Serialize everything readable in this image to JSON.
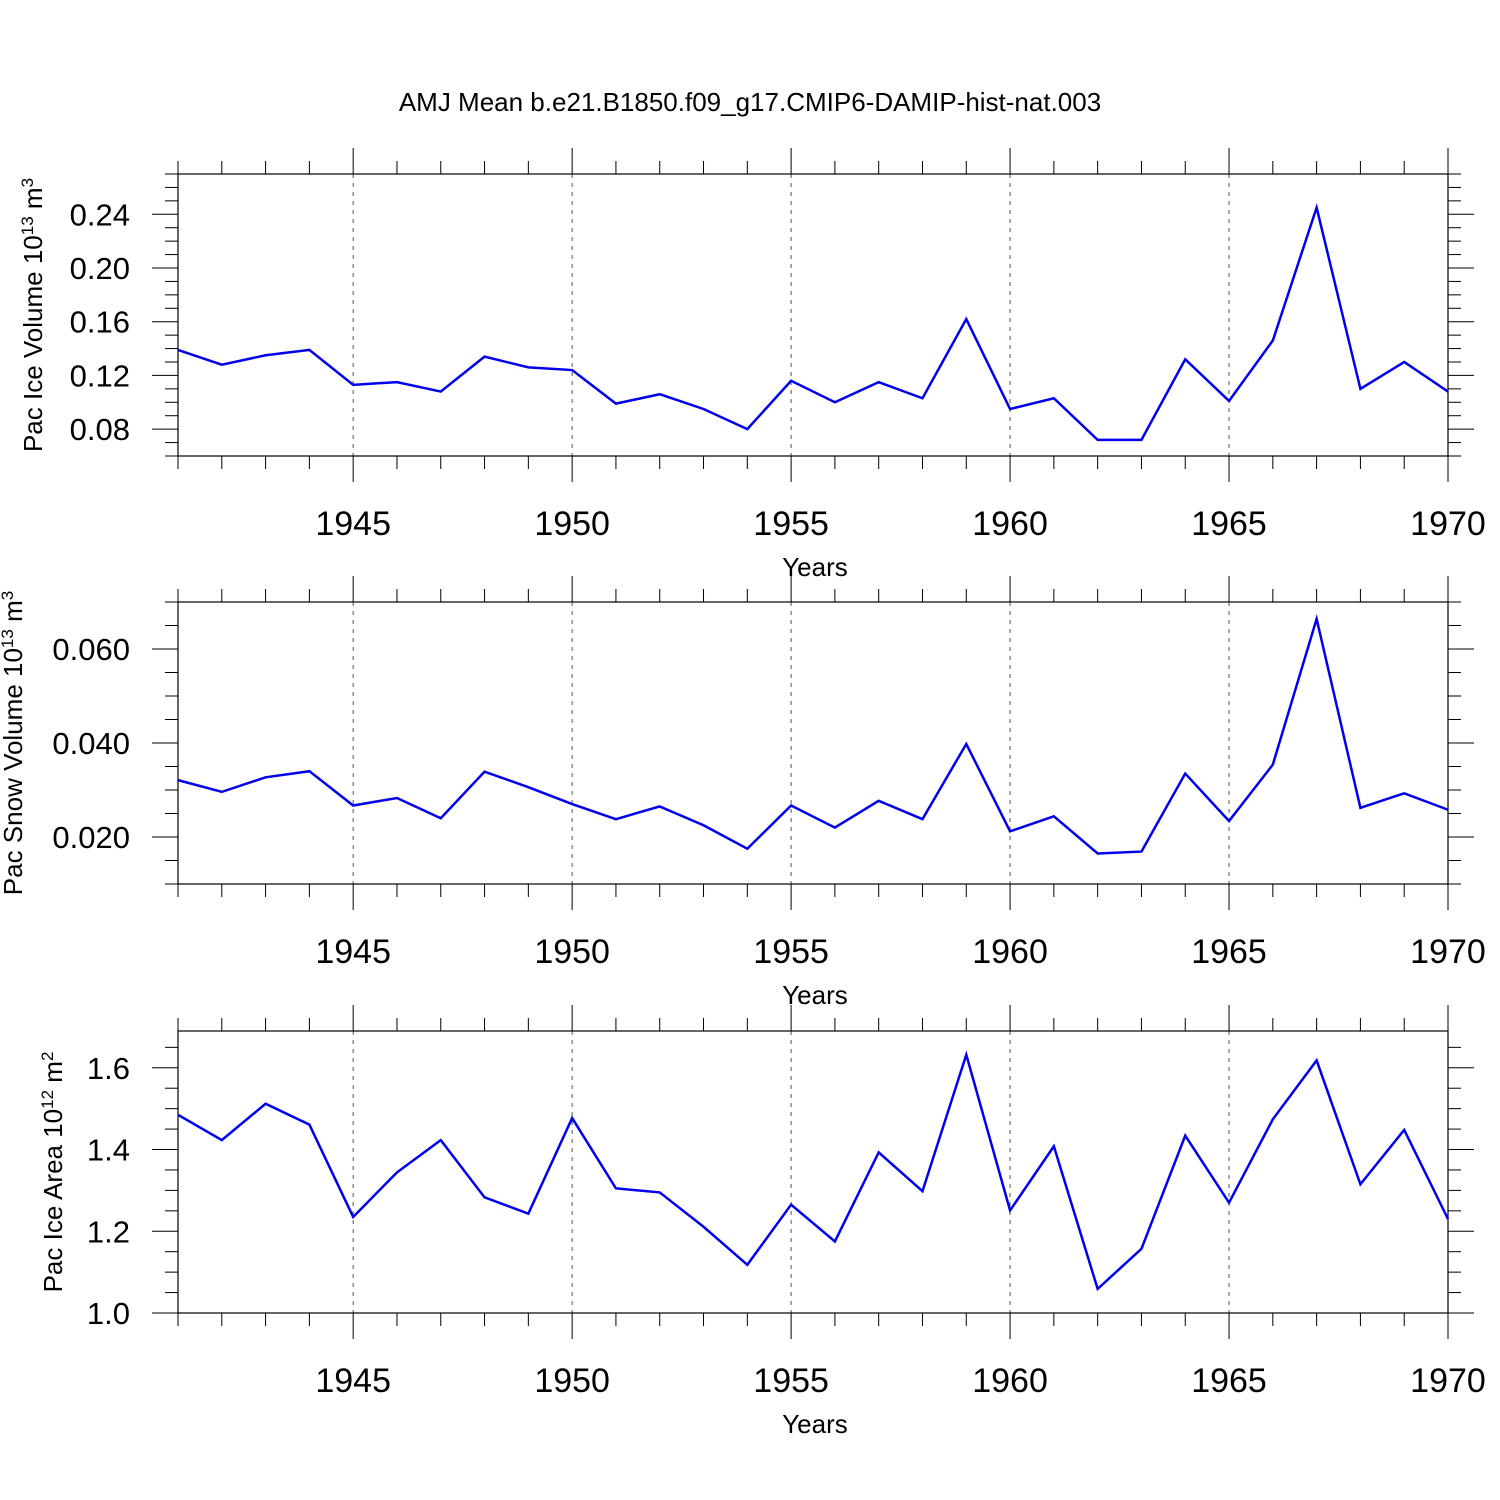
{
  "figure": {
    "title": "AMJ Mean b.e21.B1850.f09_g17.CMIP6-DAMIP-hist-nat.003"
  },
  "chart_data": [
    {
      "type": "line",
      "xlabel": "Years",
      "ylabel_text": "Pac Ice Volume 10",
      "ylabel_exp": "13",
      "ylabel_unit": " m",
      "ylabel_unit_exp": "3",
      "xlim": [
        1941,
        1970
      ],
      "ylim": [
        0.06,
        0.27
      ],
      "x_ticks": [
        "1945",
        "1950",
        "1955",
        "1960",
        "1965",
        "1970"
      ],
      "y_ticks": [
        "0.08",
        "0.12",
        "0.16",
        "0.20",
        "0.24"
      ],
      "grid": "dashed vertical lines at major x ticks",
      "color": "#0000ee",
      "x": [
        1941,
        1942,
        1943,
        1944,
        1945,
        1946,
        1947,
        1948,
        1949,
        1950,
        1951,
        1952,
        1953,
        1954,
        1955,
        1956,
        1957,
        1958,
        1959,
        1960,
        1961,
        1962,
        1963,
        1964,
        1965,
        1966,
        1967,
        1968,
        1969,
        1970
      ],
      "values": [
        0.139,
        0.128,
        0.135,
        0.139,
        0.113,
        0.115,
        0.108,
        0.134,
        0.126,
        0.124,
        0.099,
        0.106,
        0.095,
        0.08,
        0.116,
        0.1,
        0.115,
        0.103,
        0.162,
        0.095,
        0.103,
        0.072,
        0.072,
        0.132,
        0.101,
        0.146,
        0.245,
        0.11,
        0.13,
        0.108
      ]
    },
    {
      "type": "line",
      "xlabel": "Years",
      "ylabel_text": "Pac Snow Volume 10",
      "ylabel_exp": "13",
      "ylabel_unit": " m",
      "ylabel_unit_exp": "3",
      "xlim": [
        1941,
        1970
      ],
      "ylim": [
        0.01,
        0.07
      ],
      "x_ticks": [
        "1945",
        "1950",
        "1955",
        "1960",
        "1965",
        "1970"
      ],
      "y_ticks": [
        "0.020",
        "0.040",
        "0.060"
      ],
      "grid": "dashed vertical lines at major x ticks",
      "color": "#0000ee",
      "x": [
        1941,
        1942,
        1943,
        1944,
        1945,
        1946,
        1947,
        1948,
        1949,
        1950,
        1951,
        1952,
        1953,
        1954,
        1955,
        1956,
        1957,
        1958,
        1959,
        1960,
        1961,
        1962,
        1963,
        1964,
        1965,
        1966,
        1967,
        1968,
        1969,
        1970
      ],
      "values": [
        0.0321,
        0.0296,
        0.0327,
        0.034,
        0.0267,
        0.0283,
        0.024,
        0.0339,
        0.0306,
        0.027,
        0.0238,
        0.0265,
        0.0225,
        0.0175,
        0.0267,
        0.022,
        0.0277,
        0.0238,
        0.0398,
        0.0212,
        0.0244,
        0.0165,
        0.0169,
        0.0335,
        0.0234,
        0.0354,
        0.0664,
        0.0262,
        0.0293,
        0.0258
      ]
    },
    {
      "type": "line",
      "xlabel": "Years",
      "ylabel_text": "Pac Ice Area 10",
      "ylabel_exp": "12",
      "ylabel_unit": " m",
      "ylabel_unit_exp": "2",
      "xlim": [
        1941,
        1970
      ],
      "ylim": [
        1.0,
        1.69
      ],
      "x_ticks": [
        "1945",
        "1950",
        "1955",
        "1960",
        "1965",
        "1970"
      ],
      "y_ticks": [
        "1.0",
        "1.2",
        "1.4",
        "1.6"
      ],
      "grid": "dashed vertical lines at major x ticks",
      "color": "#0000ee",
      "x": [
        1941,
        1942,
        1943,
        1944,
        1945,
        1946,
        1947,
        1948,
        1949,
        1950,
        1951,
        1952,
        1953,
        1954,
        1955,
        1956,
        1957,
        1958,
        1959,
        1960,
        1961,
        1962,
        1963,
        1964,
        1965,
        1966,
        1967,
        1968,
        1969,
        1970
      ],
      "values": [
        1.485,
        1.423,
        1.512,
        1.461,
        1.235,
        1.344,
        1.423,
        1.283,
        1.243,
        1.477,
        1.305,
        1.295,
        1.211,
        1.118,
        1.265,
        1.175,
        1.393,
        1.298,
        1.632,
        1.251,
        1.408,
        1.059,
        1.157,
        1.434,
        1.27,
        1.474,
        1.618,
        1.315,
        1.448,
        1.23
      ]
    }
  ]
}
